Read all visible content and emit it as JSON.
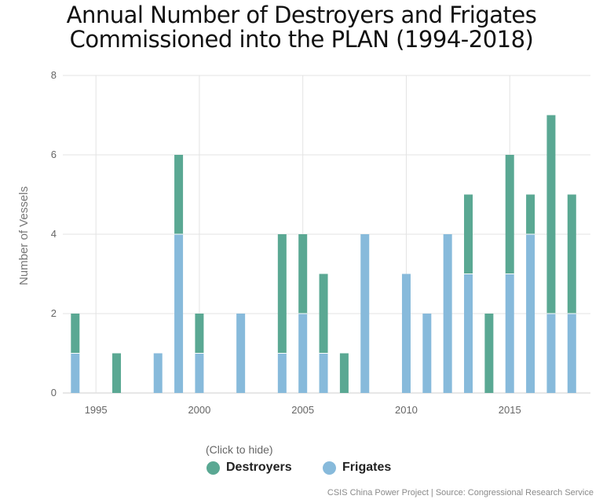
{
  "title": {
    "line1": "Annual Number of Destroyers and Frigates",
    "line2": "Commissioned into the PLAN (1994-2018)"
  },
  "legend": {
    "hint": "(Click to hide)",
    "destroyers_label": "Destroyers",
    "frigates_label": "Frigates"
  },
  "source": "CSIS China Power Project | Source: Congressional Research Service",
  "colors": {
    "destroyers": "#5aa893",
    "frigates": "#87badb",
    "grid": "#e3e3e3",
    "axis": "#cfcfcf"
  },
  "chart_data": {
    "type": "bar",
    "stacked": true,
    "ylabel": "Number of Vessels",
    "ylim": [
      0,
      8
    ],
    "yticks": [
      0,
      2,
      4,
      6,
      8
    ],
    "xticks": [
      1995,
      2000,
      2005,
      2010,
      2015
    ],
    "x": [
      1994,
      1995,
      1996,
      1997,
      1998,
      1999,
      2000,
      2001,
      2002,
      2003,
      2004,
      2005,
      2006,
      2007,
      2008,
      2009,
      2010,
      2011,
      2012,
      2013,
      2014,
      2015,
      2016,
      2017,
      2018
    ],
    "series": [
      {
        "name": "Frigates",
        "values": [
          1,
          0,
          0,
          0,
          1,
          4,
          1,
          0,
          2,
          0,
          1,
          2,
          1,
          0,
          4,
          0,
          3,
          2,
          4,
          3,
          0,
          3,
          4,
          2,
          2
        ]
      },
      {
        "name": "Destroyers",
        "values": [
          1,
          0,
          1,
          0,
          0,
          2,
          1,
          0,
          0,
          0,
          3,
          2,
          2,
          1,
          0,
          0,
          0,
          0,
          0,
          2,
          2,
          3,
          1,
          5,
          3
        ]
      }
    ],
    "grid": true,
    "legend_position": "bottom-left"
  }
}
